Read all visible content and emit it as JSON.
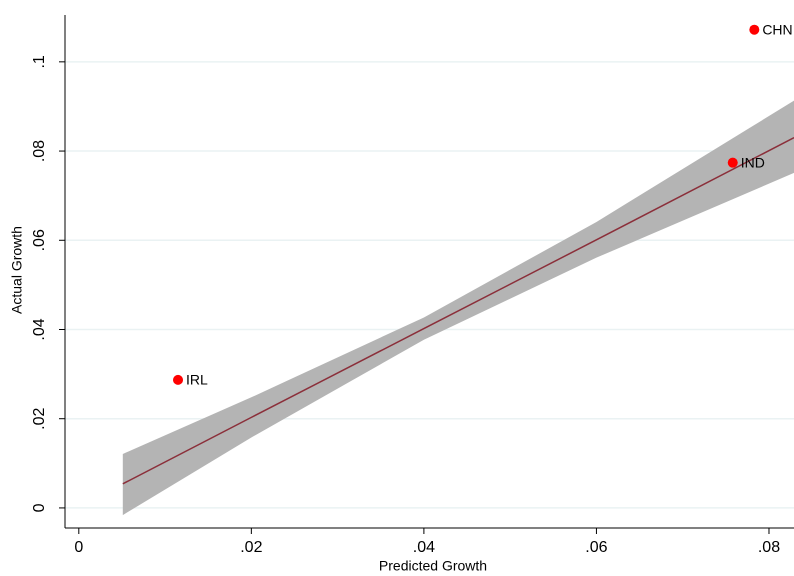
{
  "chart_data": {
    "type": "scatter",
    "xlabel": "Predicted Growth",
    "ylabel": "Actual Growth",
    "xlim": [
      -0.0016,
      0.0829
    ],
    "ylim": [
      -0.0045,
      0.1105
    ],
    "xticks": [
      0,
      {
        "value": 0.02,
        "label": ".02"
      },
      {
        "value": 0.04,
        "label": ".04"
      },
      {
        "value": 0.06,
        "label": ".06"
      },
      {
        "value": 0.08,
        "label": ".08"
      }
    ],
    "yticks": [
      0,
      {
        "value": 0.02,
        "label": ".02"
      },
      {
        "value": 0.04,
        "label": ".04"
      },
      {
        "value": 0.06,
        "label": ".06"
      },
      {
        "value": 0.08,
        "label": ".08"
      },
      {
        "value": 0.1,
        "label": ".1"
      }
    ],
    "grid": true,
    "points": {
      "color": "#ff0000",
      "labels": [
        "IRL",
        "IND",
        "CHN"
      ],
      "x": [
        0.0115,
        0.0758,
        0.0783
      ],
      "values": [
        0.0287,
        0.0774,
        0.1072
      ]
    },
    "fit": {
      "color": "#8b2f3a",
      "band_color": "#b4b4b4",
      "x": [
        0.0051,
        0.02,
        0.04,
        0.06,
        0.0829
      ],
      "values": [
        0.0054,
        0.0203,
        0.0402,
        0.0601,
        0.083
      ],
      "ci_lower": [
        -0.0016,
        0.0158,
        0.0377,
        0.0561,
        0.0751
      ],
      "ci_upper": [
        0.0121,
        0.0248,
        0.0427,
        0.0641,
        0.0913
      ]
    }
  }
}
